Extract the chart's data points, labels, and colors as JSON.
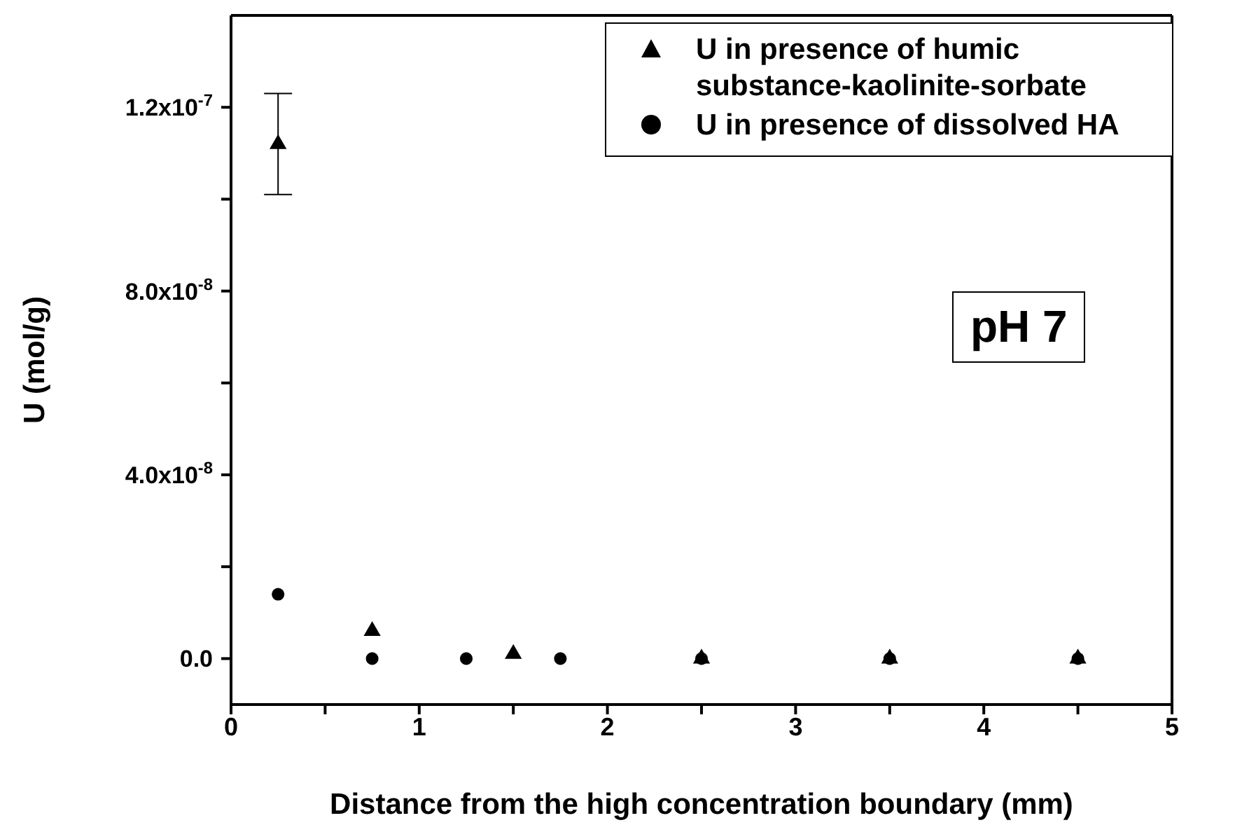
{
  "chart_data": {
    "type": "scatter",
    "xlabel": "Distance from the high concentration boundary (mm)",
    "ylabel": "U (mol/g)",
    "xlim": [
      0,
      5
    ],
    "xticks": [
      0,
      {
        "value": 0.5,
        "label": null
      },
      1,
      {
        "value": 1.5,
        "label": null
      },
      2,
      {
        "value": 2.5,
        "label": null
      },
      3,
      {
        "value": 3.5,
        "label": null
      },
      4,
      {
        "value": 4.5,
        "label": null
      },
      5
    ],
    "ylim": [
      -1e-08,
      1.4e-07
    ],
    "yticks": [
      {
        "value": 0,
        "label": "0.0"
      },
      {
        "value": 2e-08,
        "label": null
      },
      {
        "value": 4e-08,
        "label": "4.0x10$^{-8}$"
      },
      {
        "value": 6e-08,
        "label": null
      },
      {
        "value": 8e-08,
        "label": "8.0x10$^{-8}$"
      },
      {
        "value": 1e-07,
        "label": null
      },
      {
        "value": 1.2e-07,
        "label": "1.2x10$^{-7}$"
      }
    ],
    "legend": "top right",
    "series": [
      {
        "name": "U in presence of humic substance-kaolinite-sorbate",
        "color": "#000000",
        "marker": "triangle",
        "x": [
          0.25,
          0.75,
          1.5,
          2.5,
          3.5,
          4.5
        ],
        "values": [
          1.12e-07,
          6e-09,
          1e-09,
          0,
          0,
          0
        ],
        "errors": [
          [
            1.01e-07,
            1.23e-07
          ],
          null,
          null,
          null,
          null,
          null
        ]
      },
      {
        "name": "U in presence of dissolved HA",
        "color": "#000000",
        "marker": "circle",
        "x": [
          0.25,
          0.75,
          1.25,
          1.75,
          2.5,
          3.5,
          4.5
        ],
        "values": [
          1.4e-08,
          0,
          0,
          0,
          0,
          0,
          0
        ]
      }
    ],
    "annotations": [
      "pH 7"
    ]
  }
}
